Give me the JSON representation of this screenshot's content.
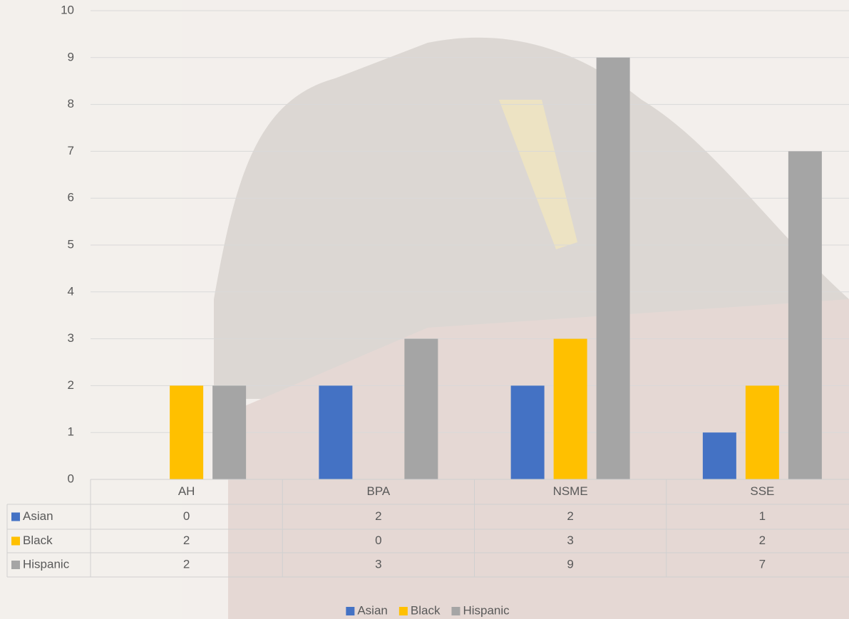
{
  "chart_data": {
    "type": "bar",
    "categories": [
      "AH",
      "BPA",
      "NSME",
      "SSE"
    ],
    "series": [
      {
        "name": "Asian",
        "color": "#4472c4",
        "values": [
          0,
          2,
          2,
          1
        ]
      },
      {
        "name": "Black",
        "color": "#ffc000",
        "values": [
          2,
          0,
          3,
          2
        ]
      },
      {
        "name": "Hispanic",
        "color": "#a5a5a5",
        "values": [
          2,
          3,
          9,
          7
        ]
      }
    ],
    "ylim": [
      0,
      10
    ],
    "yticks": [
      0,
      1,
      2,
      3,
      4,
      5,
      6,
      7,
      8,
      9,
      10
    ],
    "grid": true,
    "data_table": true,
    "legend": "bottom"
  }
}
